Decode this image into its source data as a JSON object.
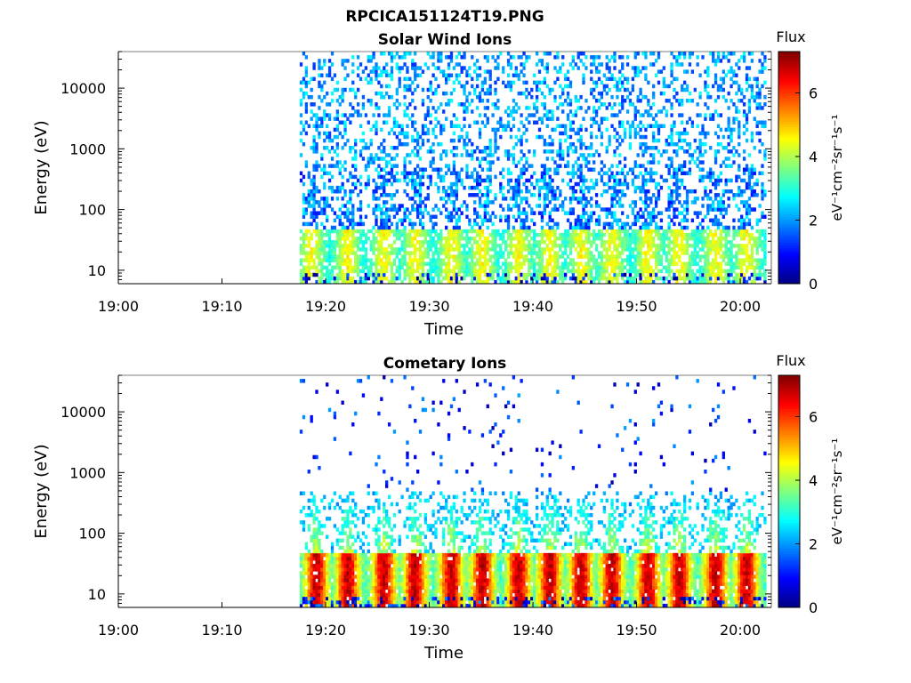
{
  "figure_title": "RPCICA151124T19.PNG",
  "colors": {
    "colormap": [
      "#00007f",
      "#0000ff",
      "#0080ff",
      "#00ffff",
      "#80ff80",
      "#ffff00",
      "#ff8000",
      "#ff0000",
      "#7f0000"
    ],
    "axes": "#000000"
  },
  "chart_data": [
    {
      "type": "heatmap",
      "title": "Solar Wind Ions",
      "xlabel": "Time",
      "ylabel": "Energy (eV)",
      "x_ticks": [
        "19:00",
        "19:10",
        "19:20",
        "19:30",
        "19:40",
        "19:50",
        "20:00"
      ],
      "x_range": [
        "19:00",
        "20:03"
      ],
      "y_scale": "log",
      "y_ticks": [
        "10",
        "100",
        "1000",
        "10000"
      ],
      "y_range": [
        6,
        40000
      ],
      "colorbar": {
        "label": "Flux",
        "unit_label": "eV⁻¹cm⁻²sr⁻¹s⁻¹",
        "ticks": [
          "0",
          "2",
          "4",
          "6"
        ],
        "range": [
          0,
          7.3
        ]
      },
      "data_start": "19:17:30",
      "data_end": "20:02:30",
      "bursts": [
        "19:18:30",
        "19:22:00",
        "19:25:30",
        "19:28:30",
        "19:32:00",
        "19:35:00",
        "19:38:30",
        "19:41:30",
        "19:44:30",
        "19:47:30",
        "19:51:00",
        "19:54:00",
        "19:57:30",
        "20:00:30"
      ],
      "low_energy_peak_flux": 4.5,
      "high_energy_background_flux": 2.2
    },
    {
      "type": "heatmap",
      "title": "Cometary Ions",
      "xlabel": "Time",
      "ylabel": "Energy (eV)",
      "x_ticks": [
        "19:00",
        "19:10",
        "19:20",
        "19:30",
        "19:40",
        "19:50",
        "20:00"
      ],
      "x_range": [
        "19:00",
        "20:03"
      ],
      "y_scale": "log",
      "y_ticks": [
        "10",
        "100",
        "1000",
        "10000"
      ],
      "y_range": [
        6,
        40000
      ],
      "colorbar": {
        "label": "Flux",
        "unit_label": "eV⁻¹cm⁻²sr⁻¹s⁻¹",
        "ticks": [
          "0",
          "2",
          "4",
          "6"
        ],
        "range": [
          0,
          7.3
        ]
      },
      "data_start": "19:17:30",
      "data_end": "20:02:30",
      "bursts": [
        "19:19:00",
        "19:22:00",
        "19:25:30",
        "19:28:30",
        "19:32:00",
        "19:35:00",
        "19:38:30",
        "19:41:30",
        "19:44:30",
        "19:47:30",
        "19:51:00",
        "19:54:00",
        "19:57:30",
        "20:00:30"
      ],
      "low_energy_peak_flux": 6.8,
      "high_energy_background_flux": 1.5
    }
  ]
}
